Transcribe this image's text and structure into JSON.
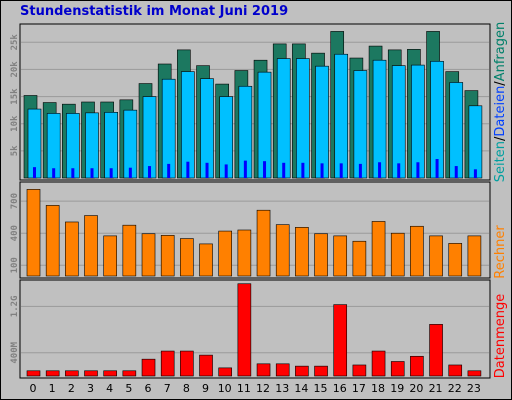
{
  "title": "Stundenstatistik im Monat Juni 2019",
  "colors": {
    "seiten": "#008060",
    "dateien": "#00c0ff",
    "rechner": "#ff8000",
    "datenmenge": "#ff0000",
    "anfragen": "#1c7860",
    "hits_inner": "#0000ff",
    "title": "#0000cc"
  },
  "legend_top": [
    {
      "key": "seiten",
      "label": "Seiten",
      "color": "#00a0a0"
    },
    {
      "key": "sep1",
      "label": "/",
      "color": "#000000"
    },
    {
      "key": "dateien",
      "label": "Dateien",
      "color": "#0040ff"
    },
    {
      "key": "sep2",
      "label": "/",
      "color": "#000000"
    },
    {
      "key": "anfragen",
      "label": "Anfragen",
      "color": "#00806a"
    }
  ],
  "legend_mid": {
    "label": "Rechner",
    "color": "#ff8000"
  },
  "legend_bottom": {
    "label": "Datenmenge",
    "color": "#ff0000"
  },
  "chart_data": [
    {
      "type": "bar",
      "name": "top",
      "categories": [
        "0",
        "1",
        "2",
        "3",
        "4",
        "5",
        "6",
        "7",
        "8",
        "9",
        "10",
        "11",
        "12",
        "13",
        "14",
        "15",
        "16",
        "17",
        "18",
        "19",
        "20",
        "21",
        "22",
        "23"
      ],
      "ylim": [
        0,
        28000
      ],
      "yticks": [
        {
          "v": 5000,
          "label": "5k"
        },
        {
          "v": 10000,
          "label": "10k"
        },
        {
          "v": 15000,
          "label": "15k"
        },
        {
          "v": 20000,
          "label": "20k"
        },
        {
          "v": 25000,
          "label": "25k"
        }
      ],
      "series": [
        {
          "name": "Anfragen",
          "values": [
            15200,
            13900,
            13600,
            14000,
            14000,
            14400,
            17400,
            21000,
            23600,
            20700,
            17300,
            19800,
            21700,
            24700,
            24700,
            23000,
            27000,
            22100,
            24300,
            23600,
            23700,
            27000,
            19600,
            16100
          ]
        },
        {
          "name": "Dateien",
          "values": [
            12700,
            11900,
            11900,
            12000,
            12100,
            12500,
            15000,
            18200,
            19600,
            18300,
            15000,
            16900,
            19500,
            22000,
            22000,
            20600,
            22800,
            19800,
            21700,
            20700,
            20800,
            21500,
            17600,
            13300
          ]
        },
        {
          "name": "Seiten",
          "values": [
            2000,
            1800,
            1800,
            1800,
            1800,
            1900,
            2200,
            2600,
            3000,
            2800,
            2500,
            3200,
            3100,
            2800,
            2800,
            2700,
            2700,
            2600,
            2900,
            2700,
            2900,
            3500,
            2200,
            1600
          ]
        }
      ]
    },
    {
      "type": "bar",
      "name": "middle",
      "categories": [
        "0",
        "1",
        "2",
        "3",
        "4",
        "5",
        "6",
        "7",
        "8",
        "9",
        "10",
        "11",
        "12",
        "13",
        "14",
        "15",
        "16",
        "17",
        "18",
        "19",
        "20",
        "21",
        "22",
        "23"
      ],
      "ylim": [
        0,
        860
      ],
      "yticks": [
        {
          "v": 100,
          "label": "100"
        },
        {
          "v": 400,
          "label": "400"
        },
        {
          "v": 700,
          "label": "700"
        }
      ],
      "series": [
        {
          "name": "Rechner",
          "values": [
            810,
            660,
            505,
            565,
            375,
            475,
            395,
            380,
            350,
            300,
            420,
            430,
            615,
            480,
            455,
            395,
            375,
            325,
            510,
            400,
            465,
            375,
            305,
            375
          ]
        }
      ]
    },
    {
      "type": "bar",
      "name": "bottom",
      "categories": [
        "0",
        "1",
        "2",
        "3",
        "4",
        "5",
        "6",
        "7",
        "8",
        "9",
        "10",
        "11",
        "12",
        "13",
        "14",
        "15",
        "16",
        "17",
        "18",
        "19",
        "20",
        "21",
        "22",
        "23"
      ],
      "ylim": [
        0,
        1620000000
      ],
      "yticks": [
        {
          "v": 400000000,
          "label": "400M"
        },
        {
          "v": 1200000000,
          "label": "1.2G"
        }
      ],
      "series": [
        {
          "name": "Datenmenge",
          "values": [
            90000000,
            90000000,
            90000000,
            90000000,
            90000000,
            90000000,
            290000000,
            430000000,
            430000000,
            360000000,
            140000000,
            1590000000,
            210000000,
            210000000,
            170000000,
            170000000,
            1230000000,
            190000000,
            430000000,
            250000000,
            340000000,
            890000000,
            190000000,
            90000000
          ]
        }
      ]
    }
  ]
}
